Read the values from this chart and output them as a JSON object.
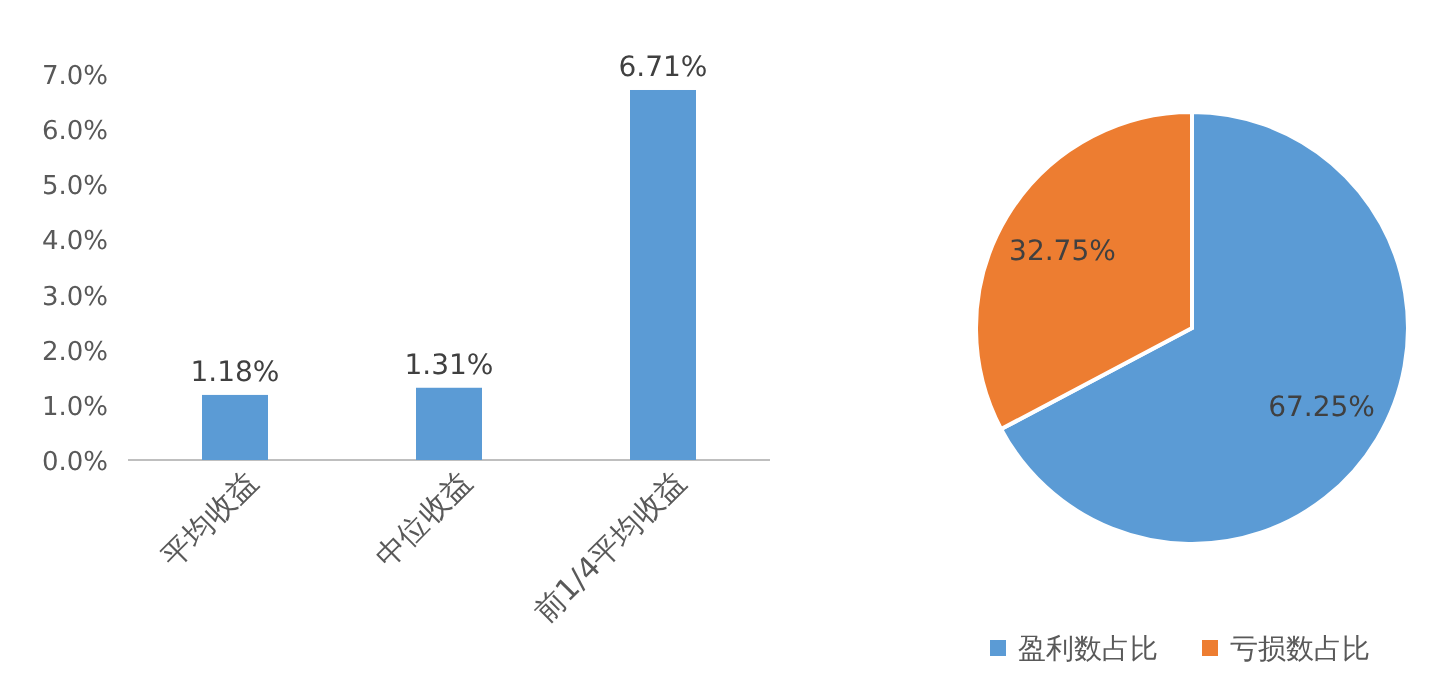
{
  "chart_data": [
    {
      "type": "bar",
      "categories": [
        "平均收益",
        "中位收益",
        "前1/4平均收益"
      ],
      "values": [
        1.18,
        1.31,
        6.71
      ],
      "value_labels": [
        "1.18%",
        "1.31%",
        "6.71%"
      ],
      "color": "#5b9bd5",
      "ylim": [
        0,
        7
      ],
      "yticks": [
        {
          "value": 0,
          "label": "0.0%"
        },
        {
          "value": 1,
          "label": "1.0%"
        },
        {
          "value": 2,
          "label": "2.0%"
        },
        {
          "value": 3,
          "label": "3.0%"
        },
        {
          "value": 4,
          "label": "4.0%"
        },
        {
          "value": 5,
          "label": "5.0%"
        },
        {
          "value": 6,
          "label": "6.0%"
        },
        {
          "value": 7,
          "label": "7.0%"
        }
      ]
    },
    {
      "type": "pie",
      "categories": [
        "盈利数占比",
        "亏损数占比"
      ],
      "values": [
        67.25,
        32.75
      ],
      "value_labels": [
        "67.25%",
        "32.75%"
      ],
      "colors": [
        "#5b9bd5",
        "#ed7d31"
      ],
      "legend": "bottom"
    }
  ]
}
